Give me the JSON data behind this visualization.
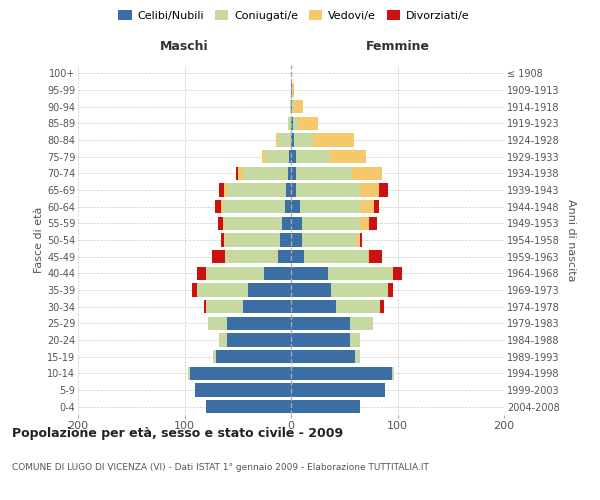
{
  "age_groups": [
    "0-4",
    "5-9",
    "10-14",
    "15-19",
    "20-24",
    "25-29",
    "30-34",
    "35-39",
    "40-44",
    "45-49",
    "50-54",
    "55-59",
    "60-64",
    "65-69",
    "70-74",
    "75-79",
    "80-84",
    "85-89",
    "90-94",
    "95-99",
    "100+"
  ],
  "birth_years": [
    "2004-2008",
    "1999-2003",
    "1994-1998",
    "1989-1993",
    "1984-1988",
    "1979-1983",
    "1974-1978",
    "1969-1973",
    "1964-1968",
    "1959-1963",
    "1954-1958",
    "1949-1953",
    "1944-1948",
    "1939-1943",
    "1934-1938",
    "1929-1933",
    "1924-1928",
    "1919-1923",
    "1914-1918",
    "1909-1913",
    "≤ 1908"
  ],
  "colors": {
    "celibi": "#3A6EA5",
    "coniugati": "#C5D9A0",
    "vedovi": "#F5C96B",
    "divorziati": "#CC1111"
  },
  "maschi": {
    "celibi": [
      80,
      90,
      95,
      70,
      60,
      60,
      45,
      40,
      25,
      12,
      10,
      8,
      6,
      5,
      3,
      2,
      0,
      0,
      0,
      0,
      0
    ],
    "coniugati": [
      0,
      0,
      2,
      3,
      8,
      18,
      35,
      48,
      55,
      50,
      52,
      55,
      58,
      55,
      42,
      22,
      12,
      3,
      1,
      0,
      0
    ],
    "vedovi": [
      0,
      0,
      0,
      0,
      0,
      0,
      0,
      0,
      0,
      0,
      1,
      1,
      2,
      3,
      5,
      3,
      2,
      0,
      0,
      0,
      0
    ],
    "divorziati": [
      0,
      0,
      0,
      0,
      0,
      0,
      2,
      5,
      8,
      12,
      3,
      5,
      5,
      5,
      2,
      0,
      0,
      0,
      0,
      0,
      0
    ]
  },
  "femmine": {
    "celibi": [
      65,
      88,
      95,
      60,
      55,
      55,
      42,
      38,
      35,
      12,
      10,
      10,
      8,
      5,
      5,
      5,
      3,
      2,
      1,
      1,
      0
    ],
    "coniugati": [
      0,
      0,
      2,
      5,
      10,
      22,
      42,
      53,
      60,
      60,
      52,
      55,
      58,
      60,
      52,
      32,
      18,
      5,
      2,
      0,
      0
    ],
    "vedovi": [
      0,
      0,
      0,
      0,
      0,
      0,
      0,
      0,
      1,
      1,
      3,
      8,
      12,
      18,
      28,
      33,
      38,
      18,
      8,
      2,
      0
    ],
    "divorziati": [
      0,
      0,
      0,
      0,
      0,
      0,
      3,
      5,
      8,
      12,
      2,
      8,
      5,
      8,
      0,
      0,
      0,
      0,
      0,
      0,
      0
    ]
  },
  "title": "Popolazione per età, sesso e stato civile - 2009",
  "subtitle": "COMUNE DI LUGO DI VICENZA (VI) - Dati ISTAT 1° gennaio 2009 - Elaborazione TUTTITALIA.IT",
  "xlabel_left": "Maschi",
  "xlabel_right": "Femmine",
  "ylabel_left": "Fasce di età",
  "ylabel_right": "Anni di nascita",
  "xlim": 200,
  "legend_labels": [
    "Celibi/Nubili",
    "Coniugati/e",
    "Vedovi/e",
    "Divorziati/e"
  ],
  "background_color": "#FFFFFF",
  "grid_color": "#CCCCCC"
}
